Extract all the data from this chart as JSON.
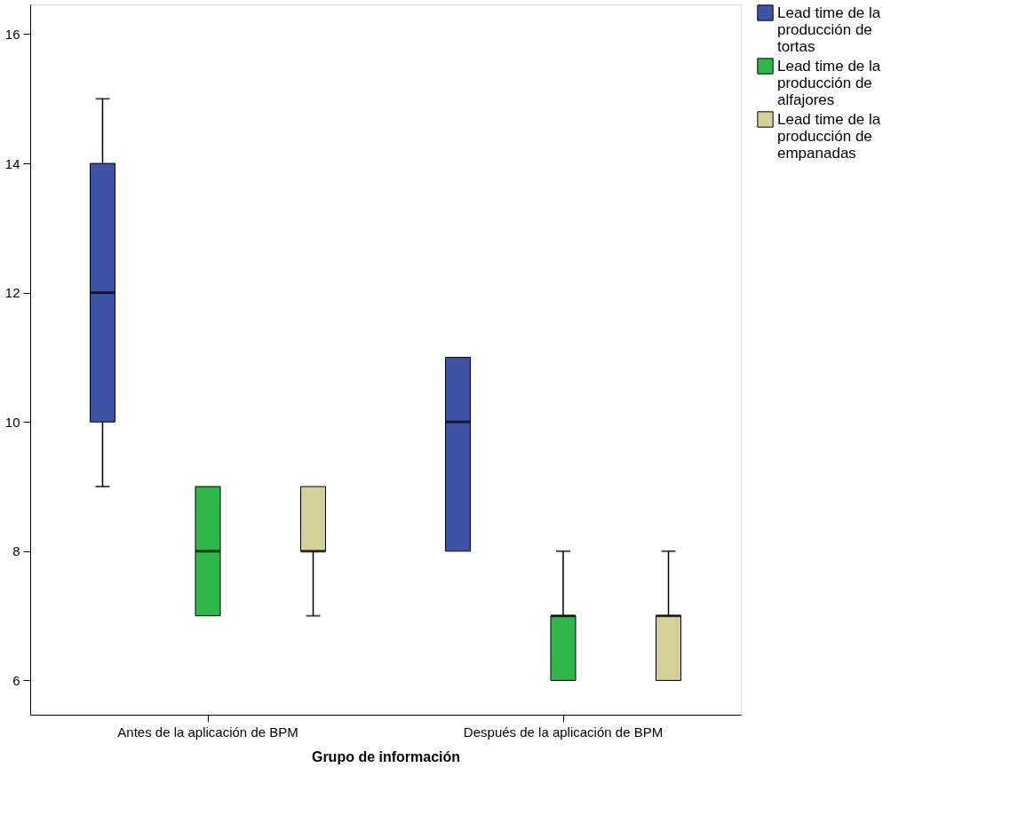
{
  "chart_data": {
    "type": "box",
    "xlabel": "Grupo de información",
    "categories": [
      "Antes de la aplicación de BPM",
      "Después de la aplicación de BPM"
    ],
    "series": [
      {
        "name": "Lead time de la producción de tortas",
        "color": "#3e53a4",
        "boxes": [
          {
            "low": 9,
            "q1": 10,
            "median": 12,
            "q3": 14,
            "high": 15
          },
          {
            "low": 8,
            "q1": 8,
            "median": 10,
            "q3": 11,
            "high": 11
          }
        ]
      },
      {
        "name": "Lead time de la producción de alfajores",
        "color": "#2fb84a",
        "boxes": [
          {
            "low": 7,
            "q1": 7,
            "median": 8,
            "q3": 9,
            "high": 9
          },
          {
            "low": 6,
            "q1": 6,
            "median": 7,
            "q3": 7,
            "high": 8
          }
        ]
      },
      {
        "name": "Lead time de la producción de empanadas",
        "color": "#d5cf98",
        "boxes": [
          {
            "low": 7,
            "q1": 8,
            "median": 8,
            "q3": 9,
            "high": 9
          },
          {
            "low": 6,
            "q1": 6,
            "median": 7,
            "q3": 7,
            "high": 8
          }
        ]
      }
    ],
    "ylim": [
      5.47,
      16.46
    ],
    "yticks": [
      6,
      8,
      10,
      12,
      14,
      16
    ],
    "grid": false,
    "legend": "right"
  }
}
